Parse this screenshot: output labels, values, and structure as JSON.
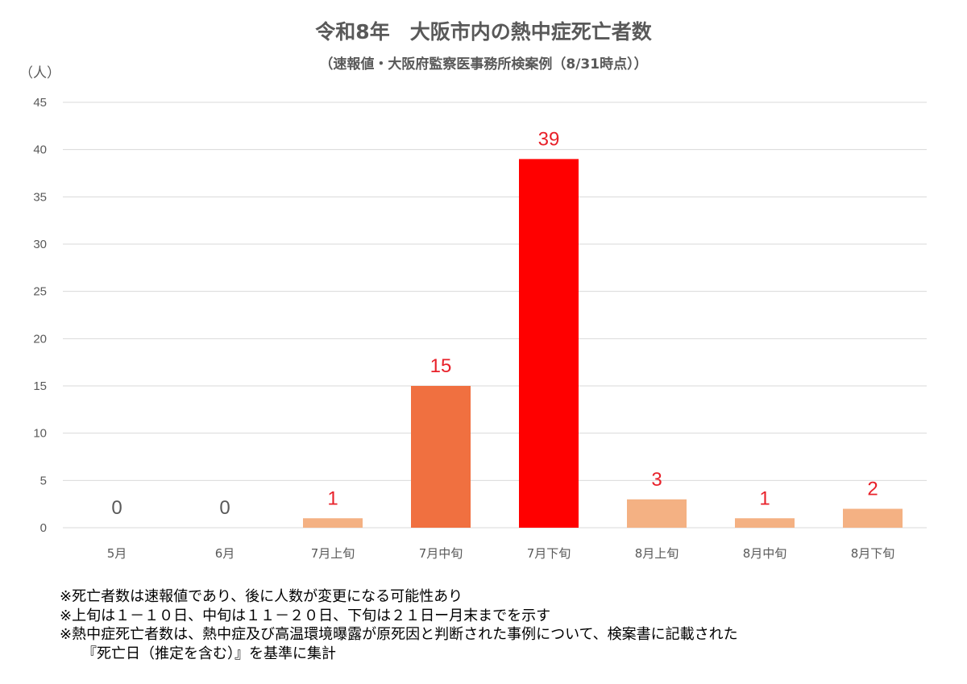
{
  "chart_data": {
    "type": "bar",
    "title": "令和8年　大阪市内の熱中症死亡者数",
    "subtitle": "（速報値・大阪府監察医事務所検案例（8/31時点））",
    "ylabel": "（人）",
    "xlabel": "",
    "ylim": [
      0,
      45
    ],
    "yticks": [
      0,
      5,
      10,
      15,
      20,
      25,
      30,
      35,
      40,
      45
    ],
    "grid": true,
    "categories": [
      "5月",
      "6月",
      "7月上旬",
      "7月中旬",
      "7月下旬",
      "8月上旬",
      "8月中旬",
      "8月下旬"
    ],
    "values": [
      0,
      0,
      1,
      15,
      39,
      3,
      1,
      2
    ],
    "bar_colors": [
      "#f4b183",
      "#f4b183",
      "#f4b183",
      "#f07040",
      "#ff0000",
      "#f4b183",
      "#f4b183",
      "#f4b183"
    ],
    "label_colors": [
      "#595959",
      "#595959",
      "#e8212a",
      "#e8212a",
      "#e8212a",
      "#e8212a",
      "#e8212a",
      "#e8212a"
    ]
  },
  "notes": [
    "※死亡者数は速報値であり、後に人数が変更になる可能性あり",
    "※上旬は１－１０日、中旬は１１－２０日、下旬は２１日ー月末までを示す",
    "※熱中症死亡者数は、熱中症及び高温環境曝露が原死因と判断された事例について、検案書に記載された",
    "『死亡日（推定を含む）』を基準に集計"
  ]
}
